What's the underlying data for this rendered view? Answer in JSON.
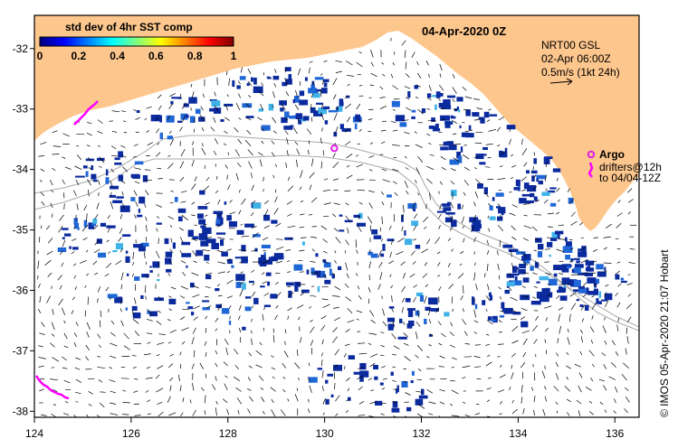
{
  "map": {
    "title": "04-Apr-2020 0Z",
    "credit": "© IMOS 05-Apr-2020 21:07 Hobart",
    "colors": {
      "land": "#fdc68d",
      "ocean": "#ffffff",
      "sst_low": "#0a2a9e",
      "sst_mid": "#1f66d6",
      "sst_high": "#3fb3e8",
      "isobath": "#a8a8a8",
      "argo": "#e020e0",
      "drifter": "#ff00ff"
    },
    "colorbar": {
      "title": "std dev of 4hr SST comp",
      "ticks": [
        "0",
        "0.2",
        "0.4",
        "0.6",
        "0.8",
        "1"
      ]
    },
    "current_legend": {
      "line1": "NRT00 GSL",
      "line2": "02-Apr 06:00Z",
      "line3": "0.5m/s (1kt 24h)"
    },
    "argo_legend": {
      "title": "Argo",
      "line1": "drifters@12h",
      "line2": "to 04/04-12Z"
    },
    "x_axis": {
      "ticks": [
        "124",
        "126",
        "128",
        "130",
        "132",
        "134",
        "136"
      ]
    },
    "y_axis": {
      "ticks": [
        "-32",
        "-33",
        "-34",
        "-35",
        "-36",
        "-37",
        "-38"
      ]
    },
    "argo_floats": [
      {
        "lon": 130.2,
        "lat": -33.65
      }
    ]
  }
}
